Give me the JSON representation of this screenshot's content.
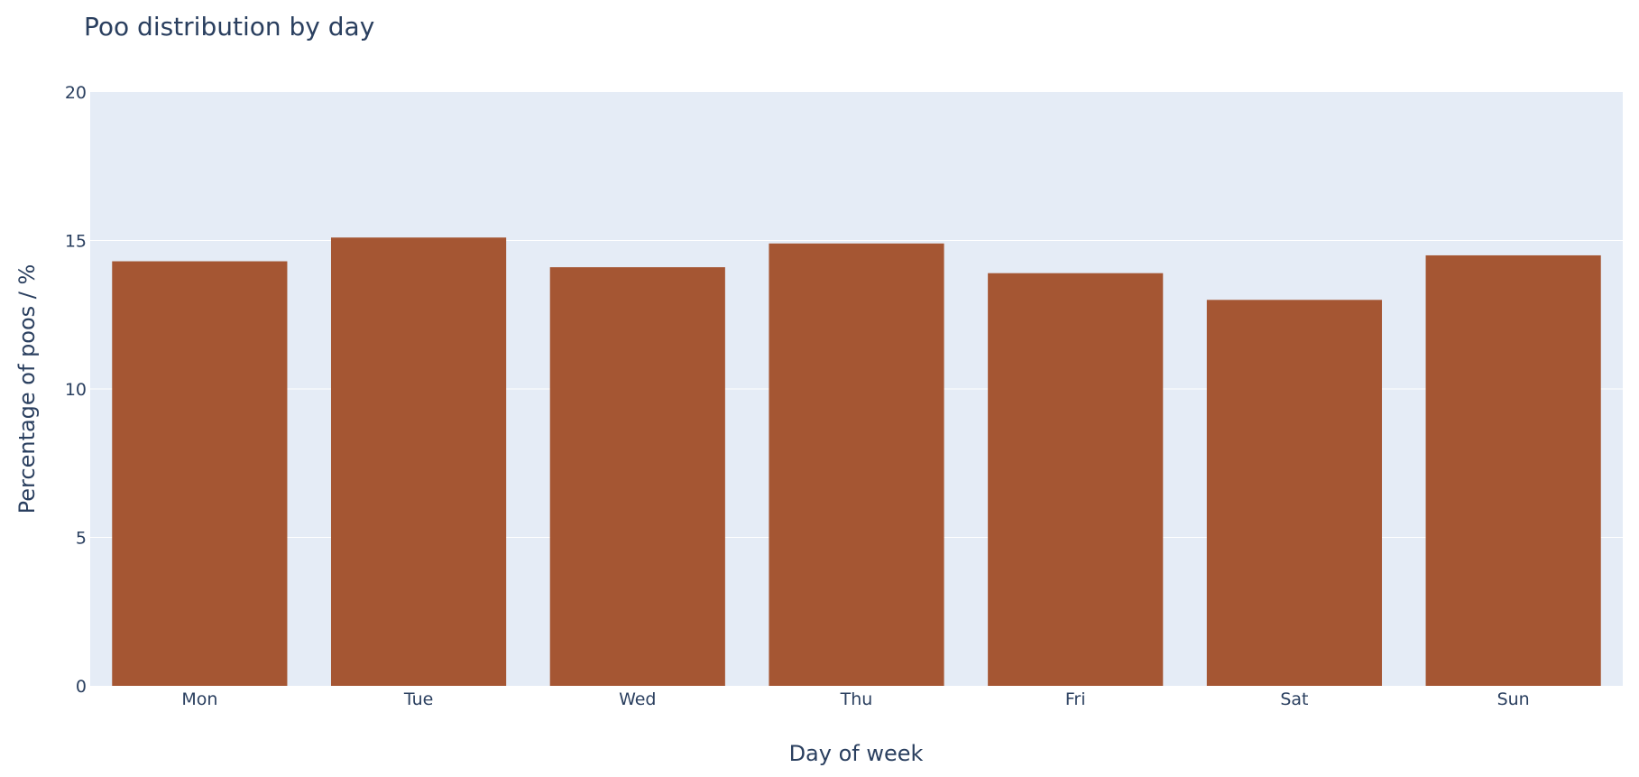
{
  "chart_data": {
    "type": "bar",
    "title": "Poo distribution by day",
    "xlabel": "Day of week",
    "ylabel": "Percentage of poos / %",
    "categories": [
      "Mon",
      "Tue",
      "Wed",
      "Thu",
      "Fri",
      "Sat",
      "Sun"
    ],
    "values": [
      14.3,
      15.1,
      14.1,
      14.9,
      13.9,
      13.0,
      14.5
    ],
    "ylim": [
      0,
      20
    ],
    "yticks": [
      "0",
      "5",
      "10",
      "15",
      "20"
    ],
    "grid": true,
    "legend": "none",
    "colors": {
      "bar": "#a55633",
      "plot_background": "#e5ecf6",
      "gridline": "#ffffff",
      "text": "#2a3f5f"
    }
  }
}
